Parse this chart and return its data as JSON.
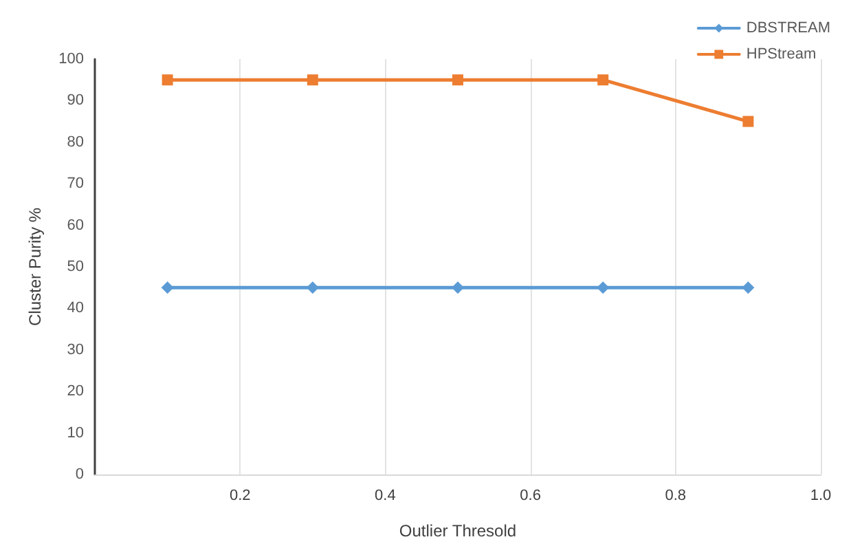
{
  "chart_data": {
    "type": "line",
    "xlabel": "Outlier Thresold",
    "ylabel": "Cluster Purity %",
    "x": [
      0.1,
      0.3,
      0.5,
      0.7,
      0.9
    ],
    "series": [
      {
        "name": "DBSTREAM",
        "color": "#5b9bd5",
        "marker": "diamond",
        "values": [
          45,
          45,
          45,
          45,
          45
        ]
      },
      {
        "name": "HPStream",
        "color": "#ed7d31",
        "marker": "square",
        "values": [
          95,
          95,
          95,
          95,
          85
        ]
      }
    ],
    "xlim": [
      0,
      1.0
    ],
    "xticks": [
      {
        "value": 0.2,
        "label": "0.2"
      },
      {
        "value": 0.4,
        "label": "0.4"
      },
      {
        "value": 0.6,
        "label": "0.6"
      },
      {
        "value": 0.8,
        "label": "0.8"
      },
      {
        "value": 1.0,
        "label": "1.0"
      }
    ],
    "ylim": [
      0,
      100
    ],
    "yticks": [
      0,
      10,
      20,
      30,
      40,
      50,
      60,
      70,
      80,
      90,
      100
    ],
    "grid": "x",
    "legend": "top right",
    "line_style": "solid"
  }
}
